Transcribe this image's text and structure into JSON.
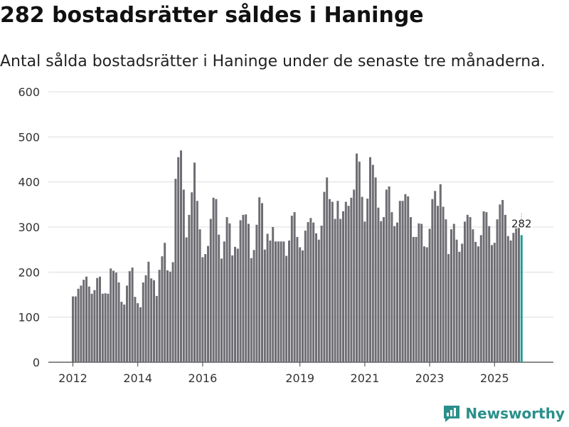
{
  "header": {
    "title": "282 bostadsrätter såldes i Haninge",
    "subtitle": "Antal sålda bostadsrätter i Haninge under de senaste tre månaderna."
  },
  "brand": {
    "name": "Newsworthy"
  },
  "colors": {
    "bar": "#6e6d73",
    "highlight": "#1f9e95",
    "grid": "#dddddd",
    "brand": "#2a8f8a"
  },
  "chart_data": {
    "type": "bar",
    "title": "282 bostadsrätter såldes i Haninge",
    "xlabel": "",
    "ylabel": "",
    "ylim": [
      0,
      600
    ],
    "yticks": [
      "0",
      "100",
      "200",
      "300",
      "400",
      "500",
      "600"
    ],
    "xticks": [
      {
        "label": "2012",
        "index": 0
      },
      {
        "label": "2014",
        "index": 24
      },
      {
        "label": "2016",
        "index": 48
      },
      {
        "label": "2019",
        "index": 84
      },
      {
        "label": "2021",
        "index": 108
      },
      {
        "label": "2023",
        "index": 132
      },
      {
        "label": "2025",
        "index": 156
      }
    ],
    "first_period": "2012-01",
    "last_label": "282",
    "values": [
      146,
      146,
      163,
      170,
      183,
      190,
      168,
      152,
      160,
      187,
      190,
      152,
      153,
      152,
      208,
      203,
      199,
      177,
      134,
      128,
      170,
      202,
      210,
      145,
      131,
      122,
      177,
      193,
      223,
      186,
      182,
      147,
      205,
      235,
      265,
      204,
      201,
      222,
      407,
      455,
      470,
      383,
      277,
      327,
      377,
      443,
      358,
      295,
      233,
      240,
      258,
      318,
      365,
      362,
      283,
      230,
      268,
      322,
      308,
      237,
      256,
      252,
      315,
      327,
      328,
      307,
      231,
      249,
      305,
      366,
      353,
      250,
      285,
      270,
      300,
      268,
      268,
      268,
      268,
      236,
      270,
      325,
      333,
      278,
      255,
      248,
      292,
      311,
      320,
      310,
      286,
      272,
      303,
      378,
      410,
      362,
      356,
      318,
      358,
      318,
      335,
      356,
      347,
      365,
      383,
      463,
      445,
      367,
      312,
      363,
      455,
      438,
      410,
      343,
      313,
      322,
      383,
      390,
      333,
      302,
      310,
      358,
      358,
      373,
      368,
      322,
      278,
      278,
      308,
      307,
      257,
      255,
      296,
      362,
      380,
      347,
      395,
      345,
      317,
      240,
      295,
      307,
      272,
      245,
      263,
      312,
      327,
      322,
      295,
      267,
      257,
      282,
      335,
      333,
      302,
      260,
      265,
      317,
      350,
      360,
      327,
      280,
      270,
      287,
      300,
      300,
      282
    ]
  }
}
